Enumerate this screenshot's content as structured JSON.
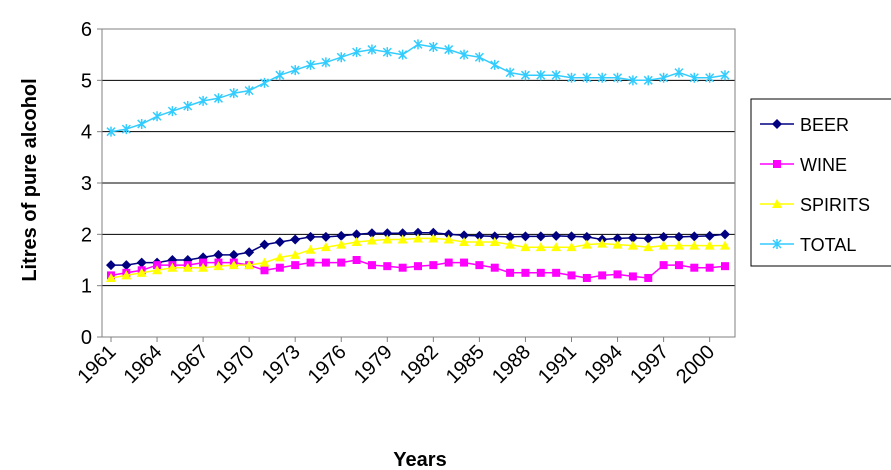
{
  "chart_data": {
    "type": "line",
    "title": "",
    "xlabel": "Years",
    "ylabel": "Litres of pure alcohol",
    "ylim": [
      0,
      6
    ],
    "yticks": [
      "0",
      "1",
      "2",
      "3",
      "4",
      "5",
      "6"
    ],
    "xtick_labels": [
      "1961",
      "1964",
      "1967",
      "1970",
      "1973",
      "1976",
      "1979",
      "1982",
      "1985",
      "1988",
      "1991",
      "1994",
      "1997",
      "2000"
    ],
    "x": [
      1961,
      1962,
      1963,
      1964,
      1965,
      1966,
      1967,
      1968,
      1969,
      1970,
      1971,
      1972,
      1973,
      1974,
      1975,
      1976,
      1977,
      1978,
      1979,
      1980,
      1981,
      1982,
      1983,
      1984,
      1985,
      1986,
      1987,
      1988,
      1989,
      1990,
      1991,
      1992,
      1993,
      1994,
      1995,
      1996,
      1997,
      1998,
      1999,
      2000,
      2001
    ],
    "grid": true,
    "legend_position": "right",
    "series": [
      {
        "name": "BEER",
        "color": "#000080",
        "marker": "diamond",
        "values": [
          1.4,
          1.4,
          1.45,
          1.45,
          1.5,
          1.5,
          1.55,
          1.6,
          1.6,
          1.65,
          1.8,
          1.85,
          1.9,
          1.95,
          1.95,
          1.97,
          2.0,
          2.02,
          2.02,
          2.02,
          2.03,
          2.03,
          2.0,
          1.98,
          1.97,
          1.96,
          1.95,
          1.96,
          1.96,
          1.97,
          1.96,
          1.95,
          1.9,
          1.92,
          1.93,
          1.92,
          1.95,
          1.95,
          1.96,
          1.97,
          2.0
        ]
      },
      {
        "name": "WINE",
        "color": "#ff00ff",
        "marker": "square",
        "values": [
          1.2,
          1.25,
          1.3,
          1.4,
          1.4,
          1.4,
          1.45,
          1.45,
          1.45,
          1.4,
          1.3,
          1.35,
          1.4,
          1.45,
          1.45,
          1.45,
          1.5,
          1.4,
          1.38,
          1.35,
          1.38,
          1.4,
          1.45,
          1.45,
          1.4,
          1.35,
          1.25,
          1.25,
          1.25,
          1.25,
          1.2,
          1.15,
          1.2,
          1.22,
          1.18,
          1.15,
          1.4,
          1.4,
          1.35,
          1.35,
          1.38
        ]
      },
      {
        "name": "SPIRITS",
        "color": "#ffff00",
        "marker": "triangle",
        "values": [
          1.15,
          1.2,
          1.25,
          1.3,
          1.35,
          1.35,
          1.35,
          1.38,
          1.4,
          1.4,
          1.45,
          1.55,
          1.6,
          1.7,
          1.75,
          1.8,
          1.85,
          1.88,
          1.9,
          1.9,
          1.92,
          1.92,
          1.9,
          1.85,
          1.85,
          1.85,
          1.8,
          1.75,
          1.75,
          1.75,
          1.75,
          1.8,
          1.82,
          1.8,
          1.78,
          1.75,
          1.78,
          1.78,
          1.78,
          1.78,
          1.78
        ]
      },
      {
        "name": "TOTAL",
        "color": "#33ccff",
        "marker": "star",
        "values": [
          4.0,
          4.05,
          4.15,
          4.3,
          4.4,
          4.5,
          4.6,
          4.65,
          4.75,
          4.8,
          4.95,
          5.1,
          5.2,
          5.3,
          5.35,
          5.45,
          5.55,
          5.6,
          5.55,
          5.5,
          5.7,
          5.65,
          5.6,
          5.5,
          5.45,
          5.3,
          5.15,
          5.1,
          5.1,
          5.1,
          5.05,
          5.05,
          5.05,
          5.05,
          5.0,
          5.0,
          5.05,
          5.15,
          5.05,
          5.05,
          5.1
        ]
      }
    ]
  }
}
